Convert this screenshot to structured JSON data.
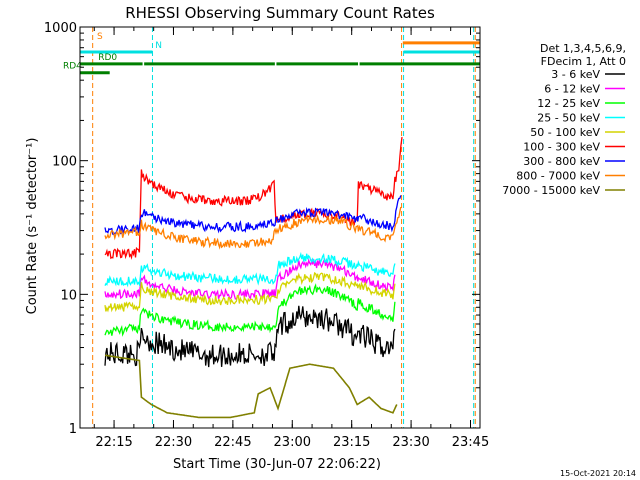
{
  "timestamp": "15-Oct-2021 20:14",
  "colors": {
    "background": "#ffffff",
    "axis": "#000000",
    "saa_bar": "#ff7f00",
    "night_bar": "#00e0e0",
    "decimation_bar": "#007f00"
  },
  "chart_data": {
    "type": "line",
    "title": "RHESSI Observing Summary Count Rates",
    "xlabel": "Start Time (30-Jun-07 22:06:22)",
    "ylabel": "Count Rate (s⁻¹ detector⁻¹)",
    "yscale": "log",
    "ylim": [
      1,
      1000
    ],
    "xlim_minutes": [
      0,
      101
    ],
    "x_ticks": [
      {
        "minute": 8.6,
        "label": "22:15"
      },
      {
        "minute": 23.6,
        "label": "22:30"
      },
      {
        "minute": 38.6,
        "label": "22:45"
      },
      {
        "minute": 53.6,
        "label": "23:00"
      },
      {
        "minute": 68.6,
        "label": "23:15"
      },
      {
        "minute": 83.6,
        "label": "23:30"
      },
      {
        "minute": 98.6,
        "label": "23:45"
      }
    ],
    "y_ticks": [
      {
        "value": 1,
        "label": "1"
      },
      {
        "value": 10,
        "label": "10"
      },
      {
        "value": 100,
        "label": "100"
      },
      {
        "value": 1000,
        "label": "1000"
      }
    ],
    "legend": {
      "placement": "right",
      "header": [
        "Det 1,3,4,5,6,9,",
        "FDecim 1, Att 0"
      ]
    },
    "flag_labels": [
      {
        "text": "S",
        "color": "#ff7f00"
      },
      {
        "text": "N",
        "color": "#00e0e0"
      },
      {
        "text": "RD0",
        "color": "#007f00"
      },
      {
        "text": "RD4",
        "color": "#007f00"
      }
    ],
    "night_periods": [
      [
        0,
        18.3
      ],
      [
        81.7,
        101
      ]
    ],
    "saa_periods": [
      [
        0,
        3.2
      ],
      [
        81.2,
        101
      ]
    ],
    "vlines": [
      {
        "minute": 3.2,
        "color": "#ff7f00"
      },
      {
        "minute": 18.3,
        "color": "#00e0e0"
      },
      {
        "minute": 81.2,
        "color": "#ff7f00"
      },
      {
        "minute": 81.7,
        "color": "#00e0e0"
      },
      {
        "minute": 99.4,
        "color": "#00e0e0"
      },
      {
        "minute": 99.8,
        "color": "#ff7f00"
      }
    ],
    "flag_bars": [
      {
        "color": "#ff7f00",
        "level": "S",
        "segments": [
          [
            81.5,
            101
          ]
        ]
      },
      {
        "color": "#00e0e0",
        "level": "N",
        "segments": [
          [
            0,
            18.3
          ],
          [
            81.7,
            101
          ]
        ]
      },
      {
        "color": "#007f00",
        "level": "RD0",
        "segments": [
          [
            0,
            15.8
          ],
          [
            16.2,
            49.2
          ],
          [
            49.6,
            70.2
          ],
          [
            70.6,
            101
          ]
        ]
      },
      {
        "color": "#007f00",
        "level": "RD4",
        "segments": [
          [
            0,
            7.5
          ]
        ]
      }
    ],
    "series": [
      {
        "name": "3 - 6 keV",
        "color": "#000000",
        "x": [
          6.3,
          15.0,
          15.5,
          18.0,
          25.0,
          32.0,
          38.0,
          49.5,
          50.0,
          55.0,
          61.0,
          66.0,
          70.0,
          70.3,
          75.0,
          79.0,
          79.5
        ],
        "y": [
          3.6,
          3.6,
          5.0,
          4.4,
          3.8,
          3.5,
          3.5,
          3.6,
          5.6,
          6.8,
          6.7,
          5.8,
          4.8,
          5.1,
          4.2,
          3.9,
          5.5
        ]
      },
      {
        "name": "6 - 12 keV",
        "color": "#ff00ff",
        "x": [
          6.3,
          15.0,
          15.5,
          18.0,
          25.0,
          32.0,
          38.0,
          49.5,
          50.0,
          55.0,
          61.0,
          66.0,
          70.0,
          70.3,
          75.0,
          79.0,
          79.5
        ],
        "y": [
          10.0,
          10.3,
          13.0,
          11.8,
          10.5,
          10.0,
          10.0,
          10.1,
          13.0,
          16.5,
          17.2,
          15.5,
          13.0,
          13.5,
          12.0,
          11.0,
          14.0
        ]
      },
      {
        "name": "12 - 25 keV",
        "color": "#00ff00",
        "x": [
          6.3,
          15.0,
          15.5,
          18.0,
          25.0,
          32.0,
          38.0,
          49.5,
          50.0,
          55.0,
          61.0,
          66.0,
          70.0,
          70.3,
          75.0,
          79.0,
          79.5
        ],
        "y": [
          5.2,
          5.6,
          7.5,
          6.9,
          6.1,
          5.8,
          5.7,
          5.8,
          8.0,
          10.5,
          11.0,
          9.8,
          8.2,
          8.6,
          7.4,
          6.7,
          8.8
        ]
      },
      {
        "name": "25 - 50 keV",
        "color": "#00ffff",
        "x": [
          6.3,
          15.0,
          15.5,
          18.0,
          25.0,
          32.0,
          38.0,
          49.5,
          50.0,
          55.0,
          61.0,
          66.0,
          70.0,
          70.3,
          75.0,
          79.0,
          79.5
        ],
        "y": [
          12.5,
          12.8,
          16.0,
          15.0,
          13.8,
          13.2,
          13.0,
          13.1,
          16.5,
          18.5,
          18.8,
          17.5,
          16.2,
          16.5,
          15.0,
          14.0,
          17.0
        ]
      },
      {
        "name": "50 - 100 keV",
        "color": "#d4d400",
        "x": [
          6.3,
          15.0,
          15.5,
          18.0,
          25.0,
          32.0,
          38.0,
          49.5,
          50.0,
          55.0,
          61.0,
          66.0,
          70.0,
          70.3,
          75.0,
          79.0,
          79.5
        ],
        "y": [
          7.8,
          8.2,
          11.5,
          10.5,
          9.5,
          9.0,
          9.0,
          9.2,
          11.0,
          13.0,
          13.5,
          12.5,
          11.5,
          11.8,
          10.5,
          9.8,
          12.0
        ]
      },
      {
        "name": "100 - 300 keV",
        "color": "#ff0000",
        "x": [
          6.3,
          15.0,
          15.5,
          17.0,
          20.0,
          25.0,
          32.0,
          42.0,
          46.0,
          48.5,
          49.0,
          49.5,
          53.0,
          60.0,
          66.0,
          70.0,
          70.3,
          73.0,
          77.0,
          79.0,
          79.5,
          80.5,
          81.3
        ],
        "y": [
          20.0,
          20.5,
          80.0,
          72.0,
          62.0,
          54.0,
          50.0,
          50.0,
          55.0,
          64.0,
          66.0,
          36.0,
          38.0,
          41.0,
          38.0,
          34.0,
          66.0,
          62.0,
          54.0,
          52.0,
          70.0,
          90.0,
          150.0
        ]
      },
      {
        "name": "300 - 800 keV",
        "color": "#0000ff",
        "x": [
          6.3,
          15.0,
          15.5,
          18.0,
          25.0,
          32.0,
          42.0,
          48.5,
          49.5,
          55.0,
          61.0,
          66.0,
          70.0,
          70.3,
          75.0,
          79.0,
          79.5,
          81.0
        ],
        "y": [
          30.0,
          31.0,
          42.0,
          38.0,
          34.0,
          32.0,
          32.0,
          34.0,
          36.0,
          40.0,
          41.0,
          39.0,
          36.0,
          38.0,
          34.0,
          32.0,
          38.0,
          55.0
        ]
      },
      {
        "name": "800 - 7000 keV",
        "color": "#ff7f00",
        "x": [
          6.3,
          15.0,
          15.5,
          18.0,
          25.0,
          32.0,
          42.0,
          48.5,
          49.5,
          55.0,
          61.0,
          66.0,
          70.0,
          70.3,
          75.0,
          79.0,
          79.5,
          81.0
        ],
        "y": [
          28.0,
          29.0,
          34.0,
          30.0,
          26.0,
          24.5,
          24.0,
          25.0,
          30.0,
          35.0,
          37.0,
          35.0,
          31.0,
          31.0,
          28.0,
          26.0,
          30.0,
          45.0
        ]
      },
      {
        "name": "7000 - 15000 keV",
        "color": "#808000",
        "x": [
          6.3,
          12.0,
          15.0,
          15.5,
          18.0,
          22.0,
          30.0,
          38.0,
          44.0,
          45.0,
          48.0,
          50.0,
          53.0,
          58.0,
          64.0,
          68.0,
          70.0,
          73.0,
          76.0,
          79.0,
          80.0
        ],
        "y": [
          3.5,
          3.3,
          3.2,
          1.7,
          1.5,
          1.3,
          1.2,
          1.2,
          1.3,
          1.8,
          2.0,
          1.4,
          2.8,
          3.0,
          2.8,
          2.0,
          1.5,
          1.7,
          1.4,
          1.3,
          1.5
        ]
      }
    ]
  }
}
